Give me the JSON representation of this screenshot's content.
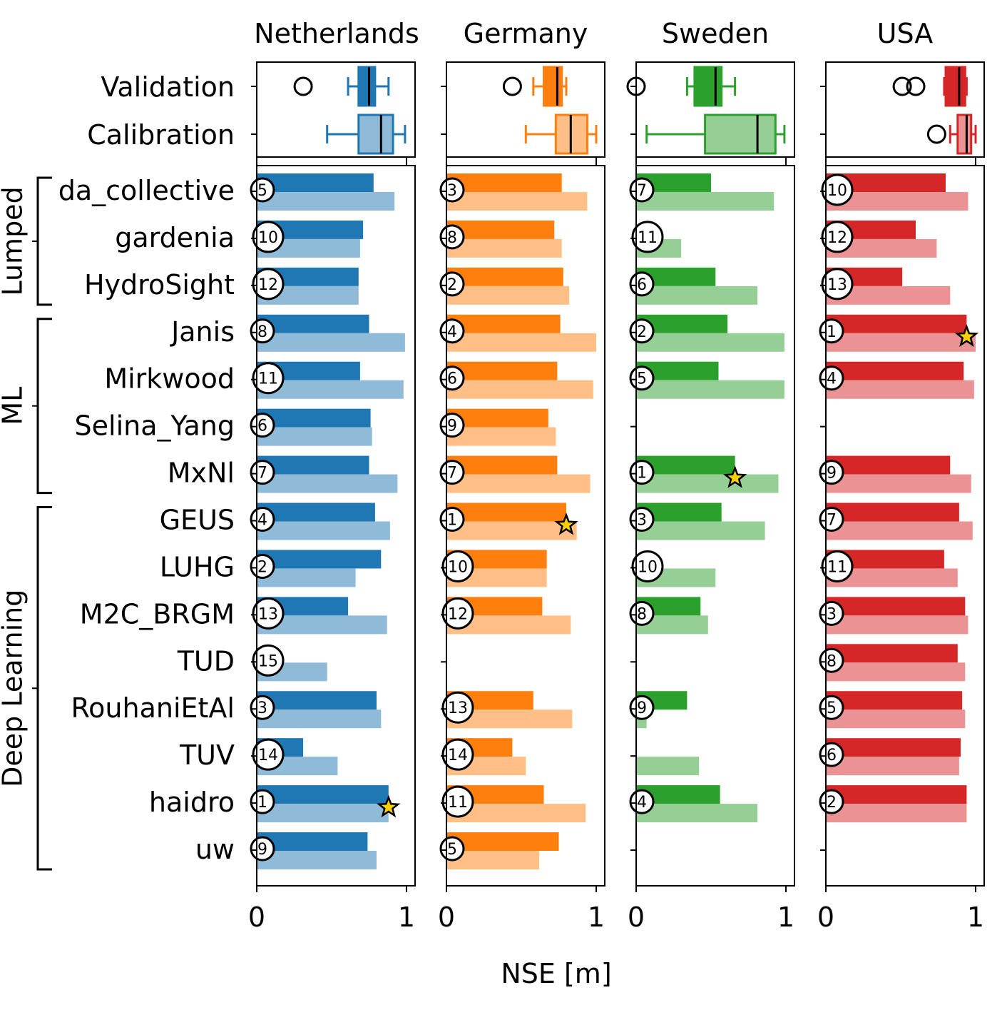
{
  "chart_data": {
    "type": "bar",
    "xlabel": "NSE [m]",
    "xlim": [
      0,
      1.05
    ],
    "xticks": [
      0,
      1
    ],
    "legend": "none",
    "summary_rows": [
      "Validation",
      "Calibration"
    ],
    "models": [
      "da_collective",
      "gardenia",
      "HydroSight",
      "Janis",
      "Mirkwood",
      "Selina_Yang",
      "MxNl",
      "GEUS",
      "LUHG",
      "M2C_BRGM",
      "TUD",
      "RouhaniEtAl",
      "TUV",
      "haidro",
      "uw"
    ],
    "groups": [
      {
        "name": "Lumped",
        "first": 0,
        "last": 2
      },
      {
        "name": "ML",
        "first": 3,
        "last": 6
      },
      {
        "name": "Deep Learning",
        "first": 7,
        "last": 14
      }
    ],
    "countries": [
      {
        "name": "Netherlands",
        "color": "#1f77b4",
        "light_color": "#8fbbd9",
        "validation": [
          0.78,
          0.71,
          0.68,
          0.75,
          0.69,
          0.76,
          0.75,
          0.79,
          0.83,
          0.61,
          null,
          0.8,
          0.31,
          0.88,
          0.74
        ],
        "calibration": [
          0.92,
          0.69,
          0.68,
          0.99,
          0.98,
          0.77,
          0.94,
          0.89,
          0.66,
          0.87,
          0.47,
          0.83,
          0.54,
          0.88,
          0.8
        ],
        "ranks": [
          5,
          10,
          12,
          8,
          11,
          6,
          7,
          4,
          2,
          13,
          15,
          3,
          14,
          1,
          9
        ],
        "best_index": 13,
        "box_validation": {
          "whislo": 0.61,
          "q1": 0.68,
          "med": 0.75,
          "q3": 0.79,
          "whishi": 0.88,
          "fliers": [
            0.31
          ]
        },
        "box_calibration": {
          "whislo": 0.47,
          "q1": 0.68,
          "med": 0.83,
          "q3": 0.91,
          "whishi": 0.99,
          "fliers": []
        }
      },
      {
        "name": "Germany",
        "color": "#ff7f0e",
        "light_color": "#ffbf86",
        "validation": [
          0.77,
          0.72,
          0.78,
          0.76,
          0.74,
          0.68,
          0.74,
          0.8,
          0.67,
          0.64,
          null,
          0.58,
          0.44,
          0.65,
          0.75
        ],
        "calibration": [
          0.94,
          0.77,
          0.82,
          1.0,
          0.98,
          0.73,
          0.96,
          0.87,
          0.67,
          0.83,
          null,
          0.84,
          0.53,
          0.93,
          0.62
        ],
        "ranks": [
          3,
          8,
          2,
          4,
          6,
          9,
          7,
          1,
          10,
          12,
          null,
          13,
          14,
          11,
          5
        ],
        "best_index": 7,
        "box_validation": {
          "whislo": 0.58,
          "q1": 0.65,
          "med": 0.74,
          "q3": 0.77,
          "whishi": 0.8,
          "fliers": [
            0.44
          ]
        },
        "box_calibration": {
          "whislo": 0.53,
          "q1": 0.73,
          "med": 0.83,
          "q3": 0.94,
          "whishi": 1.0,
          "fliers": []
        }
      },
      {
        "name": "Sweden",
        "color": "#2ca02c",
        "light_color": "#96cf96",
        "validation": [
          0.5,
          null,
          0.53,
          0.61,
          0.55,
          null,
          0.66,
          0.57,
          null,
          0.43,
          null,
          0.34,
          null,
          0.56,
          null
        ],
        "calibration": [
          0.92,
          0.3,
          0.81,
          0.99,
          0.99,
          null,
          0.95,
          0.86,
          0.53,
          0.48,
          null,
          0.07,
          0.42,
          0.81,
          null
        ],
        "ranks": [
          7,
          11,
          6,
          2,
          5,
          null,
          1,
          3,
          10,
          8,
          null,
          9,
          null,
          4,
          null
        ],
        "best_index": 6,
        "box_validation": {
          "whislo": 0.34,
          "q1": 0.39,
          "med": 0.53,
          "q3": 0.57,
          "whishi": 0.66,
          "fliers": [
            0.0
          ]
        },
        "box_calibration": {
          "whislo": 0.07,
          "q1": 0.46,
          "med": 0.81,
          "q3": 0.93,
          "whishi": 0.99,
          "fliers": []
        }
      },
      {
        "name": "USA",
        "color": "#d62728",
        "light_color": "#eb9394",
        "validation": [
          0.8,
          0.6,
          0.51,
          0.94,
          0.92,
          null,
          0.83,
          0.89,
          0.79,
          0.93,
          0.88,
          0.91,
          0.9,
          0.94,
          null
        ],
        "calibration": [
          0.95,
          0.74,
          0.83,
          1.0,
          0.99,
          null,
          0.97,
          0.98,
          0.88,
          0.95,
          0.93,
          0.93,
          0.89,
          0.94,
          null
        ],
        "ranks": [
          10,
          12,
          13,
          1,
          4,
          null,
          9,
          7,
          11,
          3,
          8,
          5,
          6,
          2,
          null
        ],
        "best_index": 3,
        "box_validation": {
          "whislo": 0.79,
          "q1": 0.8,
          "med": 0.89,
          "q3": 0.93,
          "whishi": 0.94,
          "fliers": [
            0.51,
            0.6
          ]
        },
        "box_calibration": {
          "whislo": 0.83,
          "q1": 0.88,
          "med": 0.94,
          "q3": 0.97,
          "whishi": 1.0,
          "fliers": [
            0.74
          ]
        }
      }
    ]
  }
}
